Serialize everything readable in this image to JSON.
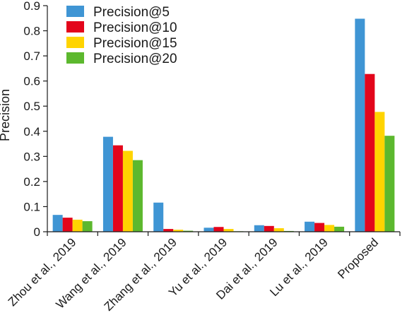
{
  "chart_data": {
    "type": "bar",
    "title": "",
    "xlabel": "",
    "ylabel": "Precision",
    "ylim": [
      0,
      0.9
    ],
    "yticks": [
      "0",
      "0.1",
      "0.2",
      "0.3",
      "0.4",
      "0.5",
      "0.6",
      "0.7",
      "0.8",
      "0.9"
    ],
    "grid": false,
    "legend_position": "top-left",
    "categories": [
      "Zhou et al., 2019",
      "Wang et al., 2019",
      "Zhang et al., 2019",
      "Yu et al., 2019",
      "Dai et al., 2019",
      "Lu et al., 2019",
      "Proposed"
    ],
    "series": [
      {
        "name": "Precision@5",
        "color": "#3f95d4",
        "values": [
          0.067,
          0.378,
          0.116,
          0.016,
          0.026,
          0.04,
          0.848
        ]
      },
      {
        "name": "Precision@10",
        "color": "#e3051b",
        "values": [
          0.056,
          0.344,
          0.011,
          0.019,
          0.023,
          0.035,
          0.628
        ]
      },
      {
        "name": "Precision@15",
        "color": "#ffd400",
        "values": [
          0.048,
          0.322,
          0.008,
          0.011,
          0.014,
          0.027,
          0.477
        ]
      },
      {
        "name": "Precision@20",
        "color": "#5cb82e",
        "values": [
          0.042,
          0.285,
          0.004,
          0.002,
          0.003,
          0.02,
          0.382
        ]
      }
    ]
  }
}
